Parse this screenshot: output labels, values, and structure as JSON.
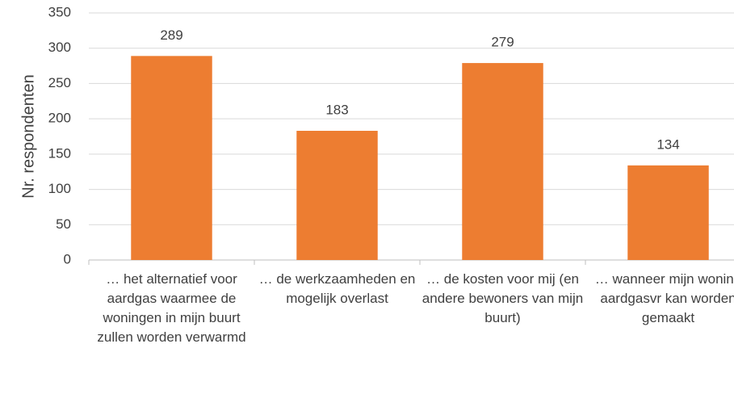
{
  "chart_data": {
    "type": "bar",
    "ylabel": "Nr. respondenten",
    "categories": [
      "… het alternatief voor aardgas waarmee de woningen in mijn buurt zullen worden verwarmd",
      "… de werkzaamheden en mogelijk overlast",
      "… de kosten voor mij (en andere bewoners van mijn buurt)",
      "… wanneer mijn woning aardgasvr kan worden gemaakt"
    ],
    "values": [
      289,
      183,
      279,
      134
    ],
    "color": "#ed7d31",
    "ylim": [
      0,
      350
    ],
    "yticks": [
      0,
      50,
      100,
      150,
      200,
      250,
      300,
      350
    ],
    "grid": true
  }
}
